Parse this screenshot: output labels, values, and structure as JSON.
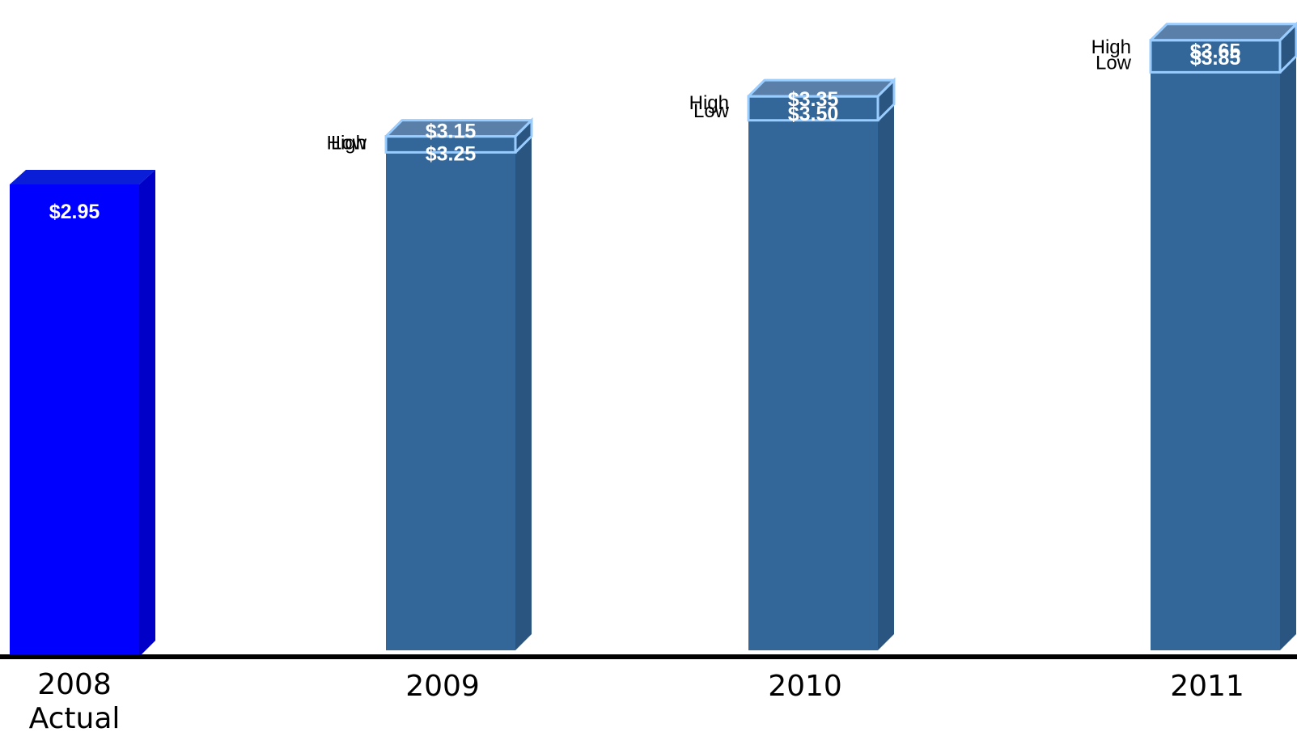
{
  "chart_data": {
    "type": "bar",
    "categories": [
      "2008\nActual",
      "2009",
      "2010",
      "2011"
    ],
    "bars": [
      {
        "category": "2008\nActual",
        "kind": "actual",
        "value": 2.95,
        "value_label": "$2.95"
      },
      {
        "category": "2009",
        "kind": "range",
        "low": 3.15,
        "high": 3.25,
        "low_label": "$3.15",
        "high_label": "$3.25",
        "low_text": "Low",
        "high_text": "High"
      },
      {
        "category": "2010",
        "kind": "range",
        "low": 3.35,
        "high": 3.5,
        "low_label": "$3.35",
        "high_label": "$3.50",
        "low_text": "Low",
        "high_text": "High"
      },
      {
        "category": "2011",
        "kind": "range",
        "low": 3.65,
        "high": 3.85,
        "low_label": "$3.65",
        "high_label": "$3.85",
        "low_text": "Low",
        "high_text": "High"
      }
    ],
    "title": "",
    "xlabel": "",
    "ylabel": "",
    "ylim": [
      0,
      3.95
    ],
    "grid": false,
    "legend": "none",
    "colors": {
      "actual_front": "#0000ff",
      "actual_side": "#0000c8",
      "actual_top": "#0a1ed8",
      "range_front": "#336699",
      "range_side": "#2a5580",
      "range_top": "#5a80aa",
      "range_outline": "#99ccff",
      "axis": "#000000"
    }
  }
}
